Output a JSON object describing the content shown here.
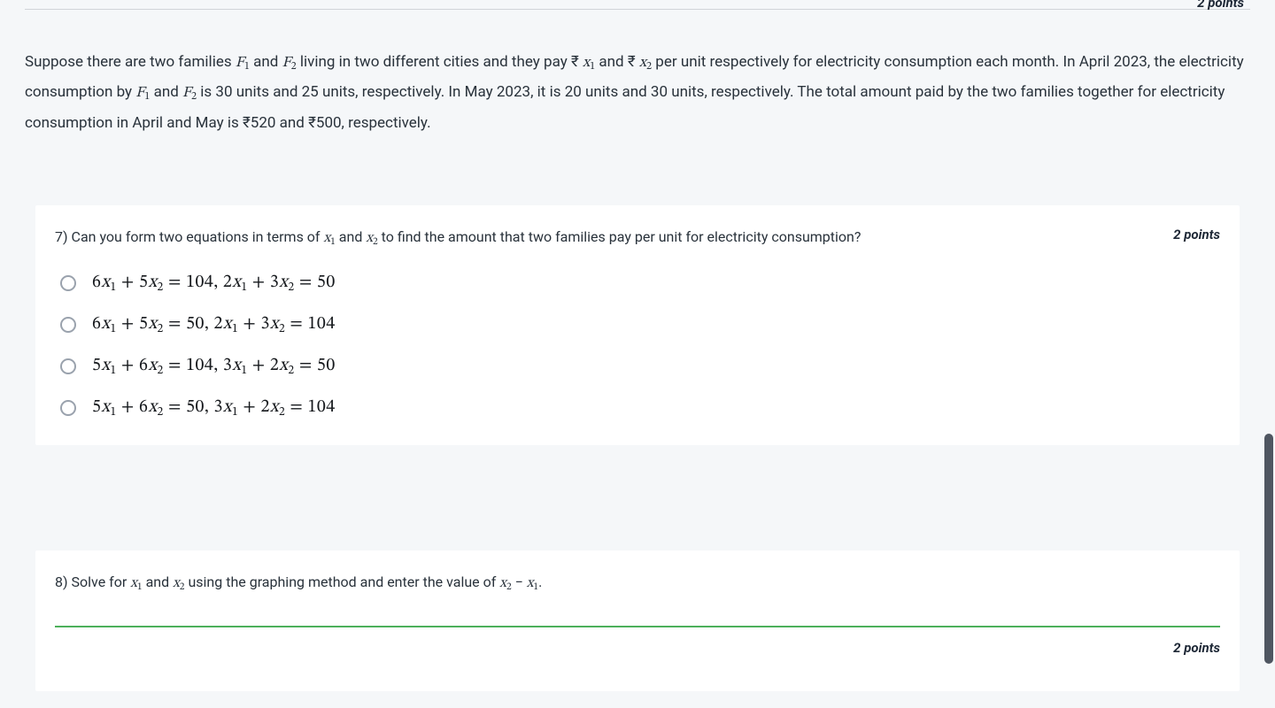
{
  "top_points": "2 points",
  "context_html": "Suppose there are two families <span class='math-i'>F<span class='sub'>1</span></span> and <span class='math-i'>F<span class='sub'>2</span></span> living in two different cities and they pay ₹ <span class='math-i'>x<span class='sub'>1</span></span> and ₹ <span class='math-i'>x<span class='sub'>2</span></span> per unit respectively for electricity consumption each month. In April 2023, the electricity consumption by <span class='math-i'>F<span class='sub'>1</span></span> and <span class='math-i'>F<span class='sub'>2</span></span> is 30 units and 25 units, respectively. In May 2023, it is 20 units and 30 units, respectively. The total amount paid by the two families together for electricity consumption in April and May is ₹520 and ₹500, respectively.",
  "q7": {
    "number": "7)",
    "text_html": "Can you form two equations in terms of <span class='math-i'>x<span class='sub'>1</span></span> and <span class='math-i'>x<span class='sub'>2</span></span> to find the amount that two families pay per unit for electricity consumption?",
    "points": "2 points",
    "options": [
      "6<span class='var'>x</span><span class='sub'>1</span> + 5<span class='var'>x</span><span class='sub'>2</span> = 104, 2<span class='var'>x</span><span class='sub'>1</span> + 3<span class='var'>x</span><span class='sub'>2</span> = 50",
      "6<span class='var'>x</span><span class='sub'>1</span> + 5<span class='var'>x</span><span class='sub'>2</span> = 50, 2<span class='var'>x</span><span class='sub'>1</span> + 3<span class='var'>x</span><span class='sub'>2</span> = 104",
      "5<span class='var'>x</span><span class='sub'>1</span> + 6<span class='var'>x</span><span class='sub'>2</span> = 104, 3<span class='var'>x</span><span class='sub'>1</span> + 2<span class='var'>x</span><span class='sub'>2</span> = 50",
      "5<span class='var'>x</span><span class='sub'>1</span> + 6<span class='var'>x</span><span class='sub'>2</span> = 50, 3<span class='var'>x</span><span class='sub'>1</span> + 2<span class='var'>x</span><span class='sub'>2</span> = 104"
    ]
  },
  "q8": {
    "number": "8)",
    "text_html": "Solve for <span class='math-i'>x<span class='sub'>1</span></span> and <span class='math-i'>x<span class='sub'>2</span></span> using the graphing method and enter the value of <span class='math-i'>x<span class='sub'>2</span></span> − <span class='math-i'>x<span class='sub'>1</span></span>.",
    "points": "2 points"
  },
  "colors": {
    "page_bg": "#f5f7f9",
    "card_bg": "#ffffff",
    "text": "#29323b",
    "radio_border": "#9aa2ad",
    "underline": "#4db05b",
    "scroll_thumb": "#4f5661"
  }
}
